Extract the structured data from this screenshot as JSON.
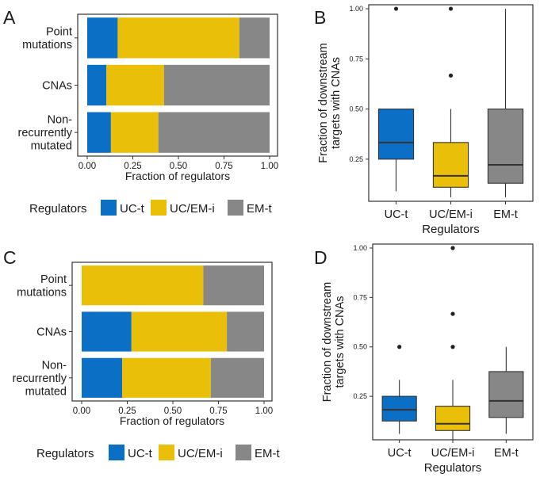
{
  "colors": {
    "uc_t": "#0c6fc6",
    "uc_em_i": "#eabf09",
    "em_t": "#878787"
  },
  "chart_data": [
    {
      "panel": "A",
      "type": "bar",
      "stacked": true,
      "orientation": "horizontal",
      "categories": [
        "Point\nmutations",
        "CNAs",
        "Non-\nrecurrently\nmutated"
      ],
      "series": [
        {
          "name": "UC-t",
          "values": [
            0.167,
            0.105,
            0.13
          ]
        },
        {
          "name": "UC/EM-i",
          "values": [
            0.667,
            0.316,
            0.26
          ]
        },
        {
          "name": "EM-t",
          "values": [
            0.166,
            0.579,
            0.61
          ]
        }
      ],
      "xlabel": "Fraction of regulators",
      "xlim": [
        0,
        1
      ],
      "xticks": [
        "0.00",
        "0.25",
        "0.50",
        "0.75",
        "1.00"
      ],
      "legend_title": "Regulators",
      "legend_position": "bottom"
    },
    {
      "panel": "B",
      "type": "box",
      "categories": [
        "UC-t",
        "UC/EM-i",
        "EM-t"
      ],
      "boxes": [
        {
          "name": "UC-t",
          "whisker_low": 0.09,
          "q1": 0.25,
          "median": 0.333,
          "q3": 0.5,
          "whisker_high": 0.5,
          "outliers": [
            1.0
          ]
        },
        {
          "name": "UC/EM-i",
          "whisker_low": 0.06,
          "q1": 0.11,
          "median": 0.167,
          "q3": 0.333,
          "whisker_high": 0.5,
          "outliers": [
            0.667,
            1.0
          ]
        },
        {
          "name": "EM-t",
          "whisker_low": 0.06,
          "q1": 0.13,
          "median": 0.222,
          "q3": 0.5,
          "whisker_high": 1.0,
          "outliers": []
        }
      ],
      "xlabel": "Regulators",
      "ylabel": "Fraction of downstream\ntargets with CNAs",
      "ylim": [
        0.04,
        1.02
      ],
      "yticks": [
        "0.25",
        "0.50",
        "0.75",
        "1.00"
      ]
    },
    {
      "panel": "C",
      "type": "bar",
      "stacked": true,
      "orientation": "horizontal",
      "categories": [
        "Point\nmutations",
        "CNAs",
        "Non-\nrecurrently\nmutated"
      ],
      "series": [
        {
          "name": "UC-t",
          "values": [
            0.0,
            0.273,
            0.222
          ]
        },
        {
          "name": "UC/EM-i",
          "values": [
            0.667,
            0.523,
            0.486
          ]
        },
        {
          "name": "EM-t",
          "values": [
            0.333,
            0.204,
            0.292
          ]
        }
      ],
      "xlabel": "Fraction of regulators",
      "xlim": [
        0,
        1
      ],
      "xticks": [
        "0.00",
        "0.25",
        "0.50",
        "0.75",
        "1.00"
      ],
      "legend_title": "Regulators",
      "legend_position": "bottom"
    },
    {
      "panel": "D",
      "type": "box",
      "categories": [
        "UC-t",
        "UC/EM-i",
        "EM-t"
      ],
      "boxes": [
        {
          "name": "UC-t",
          "whisker_low": 0.06,
          "q1": 0.125,
          "median": 0.182,
          "q3": 0.25,
          "whisker_high": 0.333,
          "outliers": [
            0.5
          ]
        },
        {
          "name": "UC/EM-i",
          "whisker_low": 0.03,
          "q1": 0.077,
          "median": 0.111,
          "q3": 0.2,
          "whisker_high": 0.333,
          "outliers": [
            0.5,
            0.667,
            1.0
          ]
        },
        {
          "name": "EM-t",
          "whisker_low": 0.06,
          "q1": 0.143,
          "median": 0.227,
          "q3": 0.375,
          "whisker_high": 0.5,
          "outliers": []
        }
      ],
      "xlabel": "Regulators",
      "ylabel": "Fraction of downstream\ntargets with CNAs",
      "ylim": [
        0.03,
        1.02
      ],
      "yticks": [
        "0.25",
        "0.50",
        "0.75",
        "1.00"
      ]
    }
  ]
}
